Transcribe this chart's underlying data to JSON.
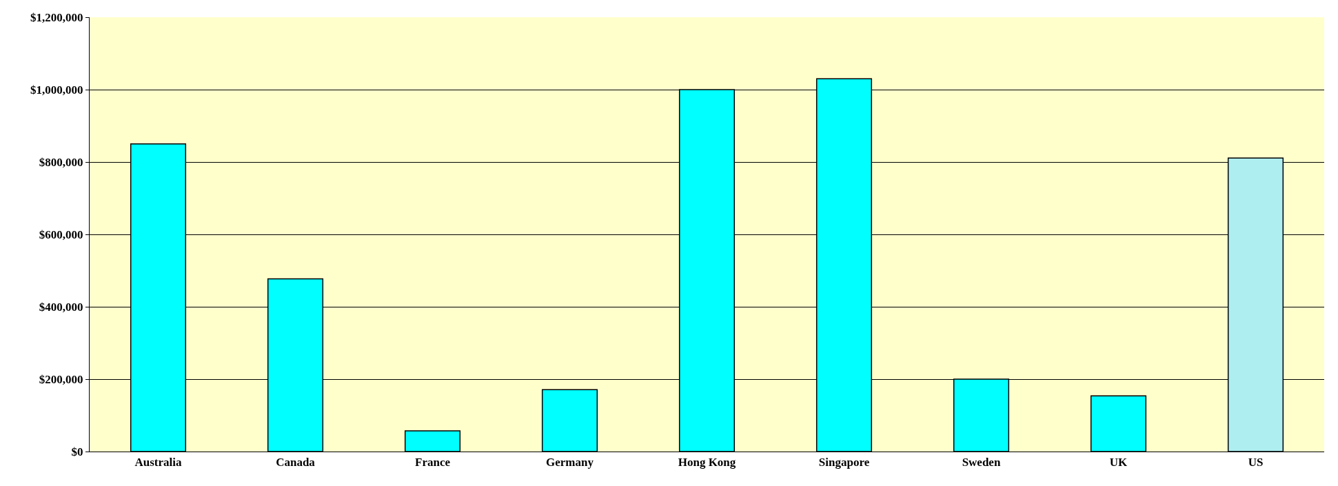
{
  "chart_data": {
    "type": "bar",
    "categories": [
      "Australia",
      "Canada",
      "France",
      "Germany",
      "Hong Kong",
      "Singapore",
      "Sweden",
      "UK",
      "US"
    ],
    "values": [
      850000,
      477000,
      57000,
      171000,
      1000000,
      1030000,
      200000,
      154000,
      811000
    ],
    "colors": [
      "#00ffff",
      "#00ffff",
      "#00ffff",
      "#00ffff",
      "#00ffff",
      "#00ffff",
      "#00ffff",
      "#00ffff",
      "#aeeef0"
    ],
    "ylim": [
      0,
      1200000
    ],
    "yticks": [
      {
        "value": 0,
        "label": "$0"
      },
      {
        "value": 200000,
        "label": "$200,000"
      },
      {
        "value": 400000,
        "label": "$400,000"
      },
      {
        "value": 600000,
        "label": "$600,000"
      },
      {
        "value": 800000,
        "label": "$800,000"
      },
      {
        "value": 1000000,
        "label": "$1,000,000"
      },
      {
        "value": 1200000,
        "label": "$1,200,000"
      }
    ],
    "grid": "y"
  }
}
